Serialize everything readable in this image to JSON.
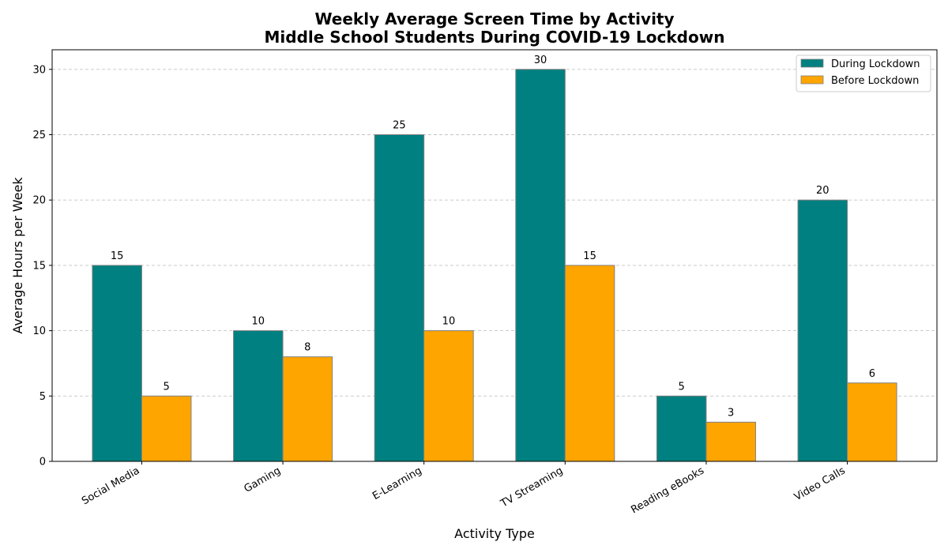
{
  "chart_data": {
    "type": "bar",
    "title": [
      "Weekly Average Screen Time by Activity",
      "Middle School Students During COVID-19 Lockdown"
    ],
    "xlabel": "Activity Type",
    "ylabel": "Average Hours per Week",
    "categories": [
      "Social Media",
      "Gaming",
      "E-Learning",
      "TV Streaming",
      "Reading eBooks",
      "Video Calls"
    ],
    "series": [
      {
        "name": "During Lockdown",
        "values": [
          15,
          10,
          25,
          30,
          5,
          20
        ],
        "color": "#008080"
      },
      {
        "name": "Before Lockdown",
        "values": [
          5,
          8,
          10,
          15,
          3,
          6
        ],
        "color": "#FFA500"
      }
    ],
    "ylim": [
      0,
      31.5
    ],
    "yticks": [
      0,
      5,
      10,
      15,
      20,
      25,
      30
    ],
    "grid": "y, dashed",
    "legend": "top-right",
    "bar_edge_color": "#808080"
  }
}
